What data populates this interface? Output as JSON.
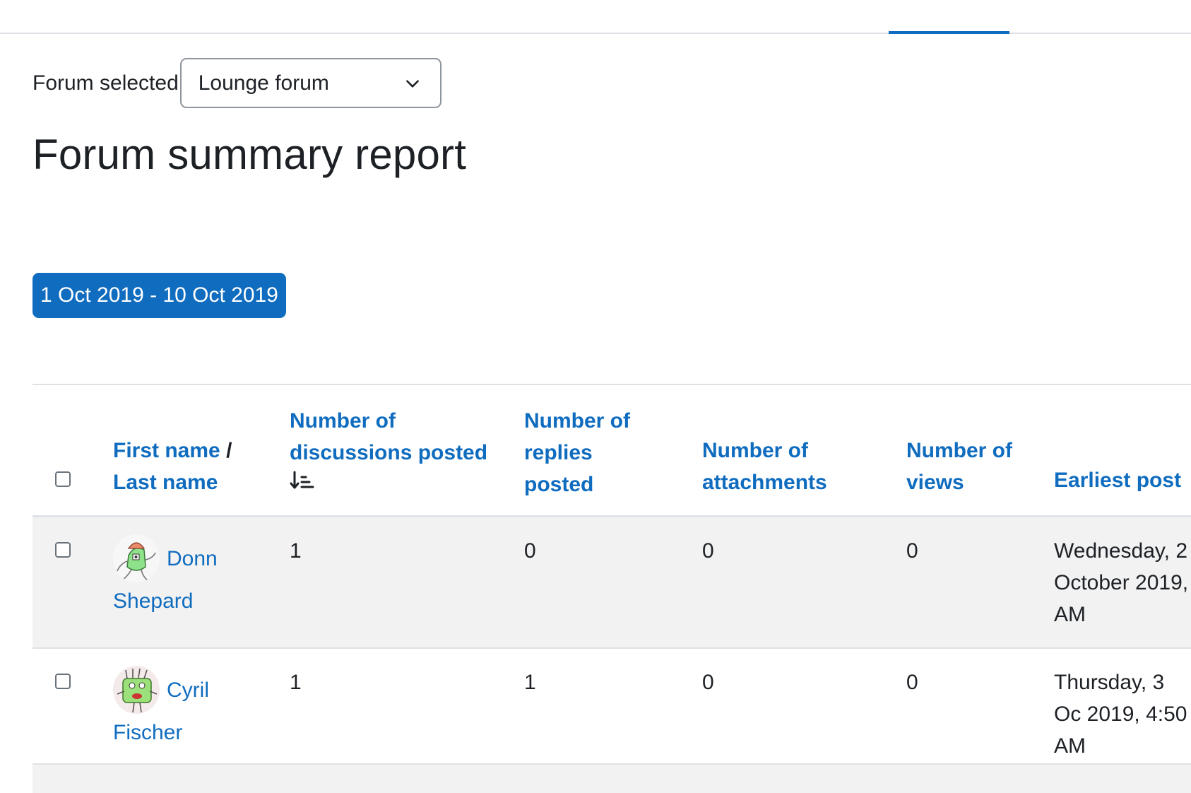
{
  "forum_select": {
    "label": "Forum selected",
    "value": "Lounge forum"
  },
  "page_title": "Forum summary report",
  "date_filter": {
    "label": "1 Oct 2019 - 10 Oct 2019"
  },
  "table": {
    "headers": {
      "name": {
        "first": "First name",
        "separator": "/",
        "last": "Last name"
      },
      "discussions": "Number of discussions posted",
      "replies": "Number of replies posted",
      "attachments": "Number of attachments",
      "views": "Number of views",
      "earliest": "Earliest post"
    },
    "rows": [
      {
        "first_name": "Donn",
        "last_name": "Shepard",
        "discussions": "1",
        "replies": "0",
        "attachments": "0",
        "views": "0",
        "earliest_post": "Wednesday, 2 October 2019, AM"
      },
      {
        "first_name": "Cyril",
        "last_name": "Fischer",
        "discussions": "1",
        "replies": "1",
        "attachments": "0",
        "views": "0",
        "earliest_post": "Thursday, 3 Oc 2019, 4:50 AM"
      }
    ]
  }
}
